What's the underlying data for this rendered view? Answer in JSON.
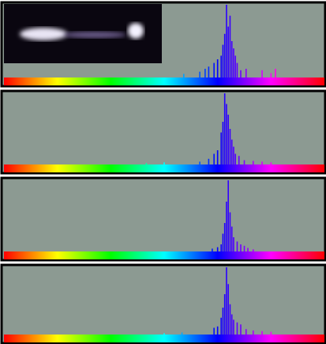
{
  "chart_data": [
    {
      "type": "bar",
      "x": [
        202,
        220,
        226,
        230,
        236,
        240,
        244,
        246,
        248,
        250,
        252,
        254,
        256,
        258,
        260,
        262,
        266,
        272,
        290,
        300,
        305
      ],
      "values": [
        5,
        8,
        12,
        15,
        20,
        25,
        30,
        45,
        60,
        100,
        70,
        85,
        50,
        40,
        30,
        20,
        10,
        12,
        10,
        6,
        12
      ],
      "xlim": [
        0,
        360
      ],
      "ylim": [
        0,
        100
      ]
    },
    {
      "type": "bar",
      "x": [
        160,
        180,
        220,
        230,
        236,
        240,
        244,
        246,
        248,
        250,
        252,
        254,
        256,
        258,
        260,
        264,
        270,
        280,
        290,
        300
      ],
      "values": [
        2,
        3,
        4,
        8,
        15,
        20,
        45,
        60,
        100,
        85,
        70,
        50,
        35,
        25,
        15,
        12,
        6,
        5,
        4,
        3
      ],
      "xlim": [
        0,
        360
      ],
      "ylim": [
        0,
        100
      ]
    },
    {
      "type": "bar",
      "x": [
        234,
        240,
        244,
        246,
        248,
        250,
        252,
        254,
        256,
        258,
        262,
        266,
        270,
        274,
        280
      ],
      "values": [
        4,
        6,
        10,
        25,
        40,
        70,
        100,
        55,
        35,
        20,
        14,
        10,
        8,
        5,
        3
      ],
      "xlim": [
        0,
        360
      ],
      "ylim": [
        0,
        100
      ]
    },
    {
      "type": "bar",
      "x": [
        180,
        200,
        236,
        240,
        244,
        246,
        248,
        250,
        252,
        254,
        256,
        258,
        262,
        266,
        272,
        280,
        290,
        300
      ],
      "values": [
        2,
        3,
        10,
        12,
        25,
        40,
        60,
        100,
        75,
        45,
        30,
        22,
        18,
        15,
        8,
        6,
        5,
        4
      ],
      "xlim": [
        0,
        360
      ],
      "ylim": [
        0,
        100
      ]
    }
  ]
}
